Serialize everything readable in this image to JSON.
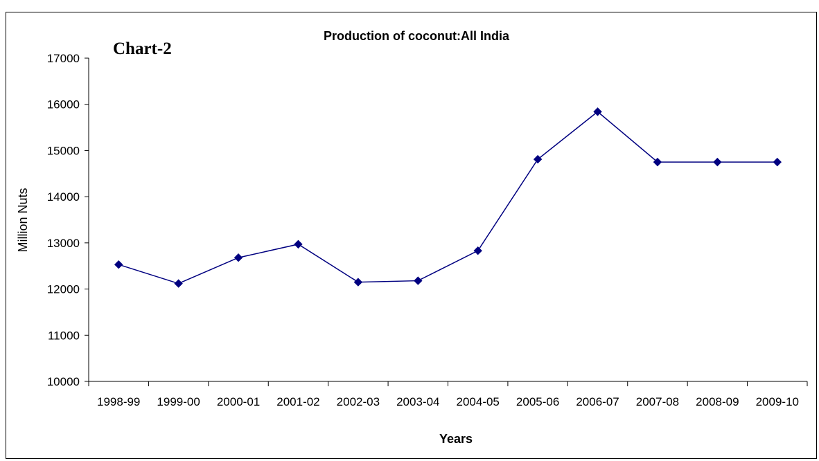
{
  "chart_data": {
    "type": "line",
    "label": "Chart-2",
    "title": "Production of coconut:All India",
    "xlabel": "Years",
    "ylabel": "Million Nuts",
    "categories": [
      "1998-99",
      "1999-00",
      "2000-01",
      "2001-02",
      "2002-03",
      "2003-04",
      "2004-05",
      "2005-06",
      "2006-07",
      "2007-08",
      "2008-09",
      "2009-10"
    ],
    "series": [
      {
        "values": [
          12530,
          12120,
          12680,
          12970,
          12150,
          12180,
          12830,
          14810,
          15840,
          14750,
          14750,
          14750
        ],
        "color": "#000080",
        "marker": "diamond"
      }
    ],
    "ylim": [
      10000,
      17000
    ],
    "yticks": [
      10000,
      11000,
      12000,
      13000,
      14000,
      15000,
      16000,
      17000
    ],
    "grid": false,
    "legend": "none"
  }
}
